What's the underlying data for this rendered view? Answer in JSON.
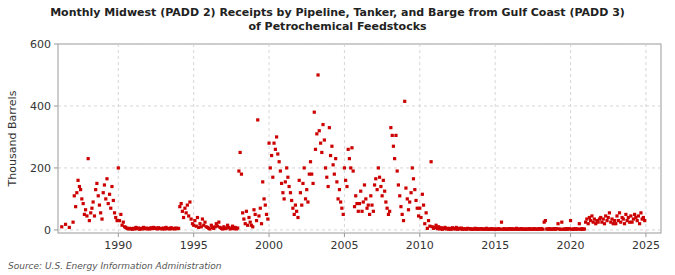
{
  "chart_data": {
    "type": "scatter",
    "title": "Monthly Midwest (PADD 2) Receipts by Pipeline, Tanker, and Barge from Gulf Coast (PADD 3)\nof Petrochemical Feedstocks",
    "ylabel": "Thousand Barrels",
    "source": "Source: U.S. Energy Information Administration",
    "color": "#cc0000",
    "marker": "square",
    "grid": true,
    "xlim": [
      1986.0,
      2026.0
    ],
    "ylim": [
      -10,
      600
    ],
    "xticks": [
      1990,
      1995,
      2000,
      2005,
      2010,
      2015,
      2020,
      2025
    ],
    "yticks": [
      0,
      200,
      400,
      600
    ],
    "x": [
      1986.25,
      1986.5,
      1986.75,
      1987.0,
      1987.08,
      1987.17,
      1987.25,
      1987.33,
      1987.42,
      1987.5,
      1987.58,
      1987.67,
      1987.75,
      1987.83,
      1987.92,
      1988.0,
      1988.08,
      1988.17,
      1988.25,
      1988.33,
      1988.42,
      1988.5,
      1988.58,
      1988.67,
      1988.75,
      1988.83,
      1988.92,
      1989.0,
      1989.08,
      1989.17,
      1989.25,
      1989.33,
      1989.42,
      1989.5,
      1989.58,
      1989.67,
      1989.75,
      1989.83,
      1989.92,
      1990.0,
      1990.08,
      1990.17,
      1990.25,
      1990.33,
      1990.42,
      1990.5,
      1990.58,
      1990.67,
      1990.75,
      1990.83,
      1990.92,
      1991.0,
      1991.08,
      1991.17,
      1991.25,
      1991.33,
      1991.42,
      1991.5,
      1991.58,
      1991.67,
      1991.75,
      1991.83,
      1991.92,
      1992.0,
      1992.08,
      1992.17,
      1992.25,
      1992.33,
      1992.42,
      1992.5,
      1992.58,
      1992.67,
      1992.75,
      1992.83,
      1992.92,
      1993.0,
      1993.08,
      1993.17,
      1993.25,
      1993.33,
      1993.42,
      1993.5,
      1993.58,
      1993.67,
      1993.75,
      1993.83,
      1993.92,
      1994.0,
      1994.08,
      1994.17,
      1994.25,
      1994.33,
      1994.42,
      1994.5,
      1994.58,
      1994.67,
      1994.75,
      1994.83,
      1994.92,
      1995.0,
      1995.08,
      1995.17,
      1995.25,
      1995.33,
      1995.42,
      1995.5,
      1995.58,
      1995.67,
      1995.75,
      1995.83,
      1995.92,
      1996.0,
      1996.08,
      1996.17,
      1996.25,
      1996.33,
      1996.42,
      1996.5,
      1996.58,
      1996.67,
      1996.75,
      1996.83,
      1996.92,
      1997.0,
      1997.08,
      1997.17,
      1997.25,
      1997.33,
      1997.42,
      1997.5,
      1997.58,
      1997.67,
      1997.75,
      1997.83,
      1997.92,
      1998.0,
      1998.08,
      1998.17,
      1998.25,
      1998.33,
      1998.42,
      1998.5,
      1998.58,
      1998.67,
      1998.75,
      1998.83,
      1998.92,
      1999.0,
      1999.08,
      1999.17,
      1999.25,
      1999.33,
      1999.42,
      1999.5,
      1999.58,
      1999.67,
      1999.75,
      1999.83,
      1999.92,
      2000.0,
      2000.08,
      2000.17,
      2000.25,
      2000.33,
      2000.42,
      2000.5,
      2000.58,
      2000.67,
      2000.75,
      2000.83,
      2000.92,
      2001.0,
      2001.08,
      2001.17,
      2001.25,
      2001.33,
      2001.42,
      2001.5,
      2001.58,
      2001.67,
      2001.75,
      2001.83,
      2001.92,
      2002.0,
      2002.08,
      2002.17,
      2002.25,
      2002.33,
      2002.42,
      2002.5,
      2002.58,
      2002.67,
      2002.75,
      2002.83,
      2002.92,
      2003.0,
      2003.08,
      2003.17,
      2003.25,
      2003.33,
      2003.42,
      2003.5,
      2003.58,
      2003.67,
      2003.75,
      2003.83,
      2003.92,
      2004.0,
      2004.08,
      2004.17,
      2004.25,
      2004.33,
      2004.42,
      2004.5,
      2004.58,
      2004.67,
      2004.75,
      2004.83,
      2004.92,
      2005.0,
      2005.08,
      2005.17,
      2005.25,
      2005.33,
      2005.42,
      2005.5,
      2005.58,
      2005.67,
      2005.75,
      2005.83,
      2005.92,
      2006.0,
      2006.08,
      2006.17,
      2006.25,
      2006.33,
      2006.42,
      2006.5,
      2006.58,
      2006.67,
      2006.75,
      2006.83,
      2006.92,
      2007.0,
      2007.08,
      2007.17,
      2007.25,
      2007.33,
      2007.42,
      2007.5,
      2007.58,
      2007.67,
      2007.75,
      2007.83,
      2007.92,
      2008.0,
      2008.08,
      2008.17,
      2008.25,
      2008.33,
      2008.42,
      2008.5,
      2008.58,
      2008.67,
      2008.75,
      2008.83,
      2008.92,
      2009.0,
      2009.08,
      2009.17,
      2009.25,
      2009.33,
      2009.42,
      2009.5,
      2009.58,
      2009.67,
      2009.75,
      2009.83,
      2009.92,
      2010.0,
      2010.08,
      2010.17,
      2010.25,
      2010.33,
      2010.42,
      2010.5,
      2010.58,
      2010.67,
      2010.75,
      2010.83,
      2010.92,
      2011.0,
      2011.08,
      2011.17,
      2011.25,
      2011.33,
      2011.42,
      2011.5,
      2011.58,
      2011.67,
      2011.75,
      2011.83,
      2011.92,
      2012.0,
      2012.08,
      2012.17,
      2012.25,
      2012.33,
      2012.42,
      2012.5,
      2012.58,
      2012.67,
      2012.75,
      2012.83,
      2012.92,
      2013.0,
      2013.08,
      2013.17,
      2013.25,
      2013.33,
      2013.42,
      2013.5,
      2013.58,
      2013.67,
      2013.75,
      2013.83,
      2013.92,
      2014.0,
      2014.08,
      2014.17,
      2014.25,
      2014.33,
      2014.42,
      2014.5,
      2014.58,
      2014.67,
      2014.75,
      2014.83,
      2014.92,
      2015.0,
      2015.08,
      2015.17,
      2015.25,
      2015.33,
      2015.42,
      2015.5,
      2015.58,
      2015.67,
      2015.75,
      2015.83,
      2015.92,
      2016.0,
      2016.08,
      2016.17,
      2016.25,
      2016.33,
      2016.42,
      2016.5,
      2016.58,
      2016.67,
      2016.75,
      2016.83,
      2016.92,
      2017.0,
      2017.08,
      2017.17,
      2017.25,
      2017.33,
      2017.42,
      2017.5,
      2017.58,
      2017.67,
      2017.75,
      2017.83,
      2017.92,
      2018.0,
      2018.08,
      2018.17,
      2018.25,
      2018.33,
      2018.42,
      2018.5,
      2018.58,
      2018.67,
      2018.75,
      2018.83,
      2018.92,
      2019.0,
      2019.08,
      2019.17,
      2019.25,
      2019.33,
      2019.42,
      2019.5,
      2019.58,
      2019.67,
      2019.75,
      2019.83,
      2019.92,
      2020.0,
      2020.08,
      2020.17,
      2020.25,
      2020.33,
      2020.42,
      2020.5,
      2020.58,
      2020.67,
      2020.75,
      2020.83,
      2020.92,
      2021.0,
      2021.08,
      2021.17,
      2021.25,
      2021.33,
      2021.42,
      2021.5,
      2021.58,
      2021.67,
      2021.75,
      2021.83,
      2021.92,
      2022.0,
      2022.08,
      2022.17,
      2022.25,
      2022.33,
      2022.42,
      2022.5,
      2022.58,
      2022.67,
      2022.75,
      2022.83,
      2022.92,
      2023.0,
      2023.08,
      2023.17,
      2023.25,
      2023.33,
      2023.42,
      2023.5,
      2023.58,
      2023.67,
      2023.75,
      2023.83,
      2023.92,
      2024.0,
      2024.08,
      2024.17,
      2024.25,
      2024.33,
      2024.42,
      2024.5,
      2024.58,
      2024.67,
      2024.75,
      2024.83,
      2024.92
    ],
    "values": [
      10,
      18,
      8,
      25,
      110,
      75,
      120,
      160,
      140,
      130,
      100,
      85,
      50,
      65,
      45,
      230,
      30,
      55,
      70,
      90,
      45,
      130,
      150,
      110,
      80,
      55,
      35,
      120,
      145,
      100,
      165,
      85,
      115,
      70,
      140,
      95,
      55,
      40,
      30,
      200,
      30,
      50,
      15,
      25,
      10,
      8,
      5,
      3,
      5,
      4,
      2,
      5,
      3,
      8,
      4,
      6,
      2,
      5,
      3,
      8,
      4,
      6,
      3,
      5,
      3,
      7,
      4,
      8,
      5,
      6,
      3,
      7,
      4,
      5,
      3,
      6,
      3,
      8,
      4,
      5,
      3,
      7,
      4,
      5,
      3,
      6,
      4,
      5,
      75,
      85,
      60,
      40,
      70,
      55,
      80,
      45,
      90,
      35,
      20,
      15,
      30,
      12,
      40,
      8,
      20,
      10,
      35,
      15,
      25,
      10,
      8,
      5,
      3,
      15,
      8,
      5,
      10,
      20,
      12,
      25,
      8,
      5,
      3,
      10,
      4,
      6,
      15,
      8,
      3,
      5,
      12,
      4,
      8,
      3,
      6,
      190,
      250,
      180,
      55,
      35,
      20,
      60,
      15,
      40,
      25,
      15,
      10,
      65,
      50,
      30,
      355,
      45,
      70,
      20,
      155,
      100,
      80,
      50,
      35,
      280,
      200,
      240,
      170,
      280,
      260,
      300,
      245,
      220,
      190,
      150,
      120,
      100,
      155,
      200,
      170,
      140,
      120,
      95,
      70,
      50,
      80,
      60,
      40,
      160,
      120,
      80,
      150,
      200,
      100,
      130,
      90,
      180,
      220,
      180,
      150,
      380,
      260,
      310,
      500,
      320,
      280,
      250,
      340,
      290,
      200,
      170,
      140,
      330,
      240,
      270,
      210,
      180,
      230,
      155,
      100,
      130,
      90,
      70,
      50,
      200,
      160,
      140,
      260,
      230,
      200,
      265,
      190,
      75,
      110,
      85,
      60,
      85,
      125,
      60,
      90,
      145,
      100,
      70,
      80,
      50,
      110,
      80,
      60,
      145,
      165,
      130,
      200,
      170,
      140,
      110,
      160,
      125,
      90,
      70,
      50,
      60,
      330,
      305,
      270,
      230,
      305,
      190,
      145,
      110,
      75,
      50,
      30,
      415,
      135,
      100,
      65,
      90,
      120,
      200,
      165,
      130,
      95,
      70,
      45,
      70,
      40,
      115,
      80,
      20,
      55,
      5,
      30,
      12,
      220,
      10,
      5,
      8,
      15,
      4,
      10,
      3,
      7,
      2,
      5,
      8,
      3,
      5,
      2,
      5,
      2,
      7,
      4,
      3,
      8,
      2,
      5,
      3,
      6,
      2,
      4,
      3,
      2,
      5,
      3,
      4,
      2,
      3,
      2,
      5,
      2,
      4,
      2,
      3,
      4,
      2,
      3,
      2,
      5,
      2,
      3,
      2,
      4,
      2,
      3,
      2,
      3,
      2,
      4,
      2,
      25,
      2,
      4,
      2,
      3,
      2,
      4,
      2,
      4,
      2,
      3,
      2,
      5,
      2,
      3,
      2,
      4,
      2,
      3,
      2,
      3,
      2,
      4,
      2,
      3,
      2,
      4,
      2,
      3,
      2,
      4,
      2,
      4,
      2,
      25,
      30,
      3,
      2,
      4,
      2,
      3,
      2,
      4,
      2,
      4,
      20,
      3,
      2,
      25,
      2,
      3,
      2,
      4,
      2,
      4,
      30,
      2,
      3,
      2,
      4,
      2,
      3,
      20,
      2,
      4,
      2,
      3,
      25,
      35,
      20,
      40,
      30,
      45,
      25,
      35,
      20,
      30,
      25,
      35,
      40,
      25,
      35,
      20,
      45,
      30,
      40,
      55,
      25,
      35,
      20,
      30,
      20,
      45,
      30,
      55,
      25,
      40,
      35,
      20,
      50,
      30,
      40,
      25,
      45,
      25,
      35,
      50,
      40,
      30,
      45,
      20,
      55,
      35,
      40,
      30
    ]
  }
}
